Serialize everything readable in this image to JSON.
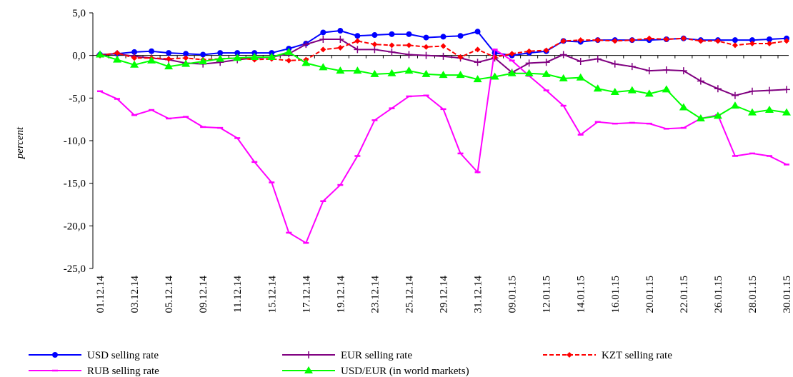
{
  "chart_data": {
    "type": "line",
    "y_label": "percent",
    "categories": [
      "01.12.14",
      null,
      "03.12.14",
      null,
      "05.12.14",
      null,
      "09.12.14",
      null,
      "11.12.14",
      null,
      "15.12.14",
      null,
      "17.12.14",
      null,
      "19.12.14",
      null,
      "23.12.14",
      null,
      "25.12.14",
      null,
      "29.12.14",
      null,
      "31.12.14",
      null,
      "09.01.15",
      null,
      "12.01.15",
      null,
      "14.01.15",
      null,
      "16.01.15",
      null,
      "20.01.15",
      null,
      "22.01.15",
      null,
      "26.01.15",
      null,
      "28.01.15",
      null,
      "30.01.15"
    ],
    "ylim": [
      -25,
      5
    ],
    "yticks": [
      {
        "value": 5,
        "label": "5,0"
      },
      {
        "value": 0,
        "label": "0,0"
      },
      {
        "value": -5,
        "label": "-5,0"
      },
      {
        "value": -10,
        "label": "-10,0"
      },
      {
        "value": -15,
        "label": "-15,0"
      },
      {
        "value": -20,
        "label": "-20,0"
      },
      {
        "value": -25,
        "label": "-25,0"
      }
    ],
    "legend": "bottom",
    "series": [
      {
        "name": "USD selling rate",
        "color": "#0000ff",
        "marker": "circle",
        "dash": false,
        "values": [
          0.1,
          0.2,
          0.4,
          0.5,
          0.3,
          0.2,
          0.1,
          0.3,
          0.3,
          0.3,
          0.3,
          0.8,
          1.4,
          2.7,
          2.9,
          2.3,
          2.4,
          2.5,
          2.5,
          2.1,
          2.2,
          2.3,
          2.8,
          0.3,
          0.0,
          0.3,
          0.5,
          1.7,
          1.6,
          1.8,
          1.8,
          1.8,
          1.8,
          1.9,
          2.0,
          1.8,
          1.8,
          1.8,
          1.8,
          1.9,
          2.0
        ]
      },
      {
        "name": "EUR selling rate",
        "color": "#800080",
        "marker": "plus",
        "dash": false,
        "values": [
          0.1,
          0.2,
          -0.1,
          -0.3,
          -0.5,
          -0.9,
          -1.0,
          -0.8,
          -0.5,
          -0.3,
          -0.2,
          0.2,
          1.3,
          1.9,
          1.9,
          0.7,
          0.7,
          0.4,
          0.1,
          0.0,
          -0.1,
          -0.3,
          -0.8,
          -0.3,
          -2.0,
          -0.9,
          -0.8,
          0.1,
          -0.7,
          -0.4,
          -1.0,
          -1.3,
          -1.8,
          -1.7,
          -1.8,
          -3.0,
          -3.9,
          -4.7,
          -4.2,
          -4.1,
          -4.0
        ]
      },
      {
        "name": "KZT selling rate",
        "color": "#ff0000",
        "marker": "diamond",
        "dash": true,
        "values": [
          0.0,
          0.3,
          -0.3,
          -0.3,
          -0.4,
          -0.3,
          -0.5,
          -0.4,
          -0.3,
          -0.5,
          -0.4,
          -0.6,
          -0.5,
          0.7,
          0.9,
          1.7,
          1.3,
          1.2,
          1.2,
          1.0,
          1.1,
          -0.2,
          0.7,
          -0.2,
          0.2,
          0.5,
          0.6,
          1.7,
          1.8,
          1.8,
          1.7,
          1.8,
          2.0,
          1.9,
          2.0,
          1.7,
          1.7,
          1.2,
          1.4,
          1.4,
          1.7
        ]
      },
      {
        "name": "RUB selling rate",
        "color": "#ff00ff",
        "marker": "dash",
        "dash": false,
        "values": [
          -4.2,
          -5.1,
          -7.0,
          -6.4,
          -7.4,
          -7.2,
          -8.4,
          -8.5,
          -9.7,
          -12.5,
          -14.9,
          -20.8,
          -22.0,
          -17.1,
          -15.2,
          -11.8,
          -7.6,
          -6.2,
          -4.8,
          -4.7,
          -6.3,
          -11.5,
          -13.7,
          0.7,
          -0.6,
          -2.4,
          -4.1,
          -5.9,
          -9.3,
          -7.8,
          -8.0,
          -7.9,
          -8.0,
          -8.6,
          -8.5,
          -7.4,
          -7.0,
          -11.8,
          -11.5,
          -11.8,
          -12.8
        ]
      },
      {
        "name": "USD/EUR (in world markets)",
        "color": "#00ff00",
        "marker": "triangle",
        "dash": false,
        "values": [
          0.1,
          -0.5,
          -1.1,
          -0.6,
          -1.3,
          -1.0,
          -0.7,
          -0.4,
          -0.3,
          -0.2,
          -0.2,
          0.4,
          -0.9,
          -1.4,
          -1.8,
          -1.8,
          -2.2,
          -2.1,
          -1.8,
          -2.2,
          -2.3,
          -2.3,
          -2.8,
          -2.5,
          -2.1,
          -2.1,
          -2.2,
          -2.7,
          -2.6,
          -3.9,
          -4.3,
          -4.1,
          -4.5,
          -4.0,
          -6.1,
          -7.4,
          -7.1,
          -5.9,
          -6.7,
          -6.4,
          -6.7
        ]
      }
    ]
  }
}
